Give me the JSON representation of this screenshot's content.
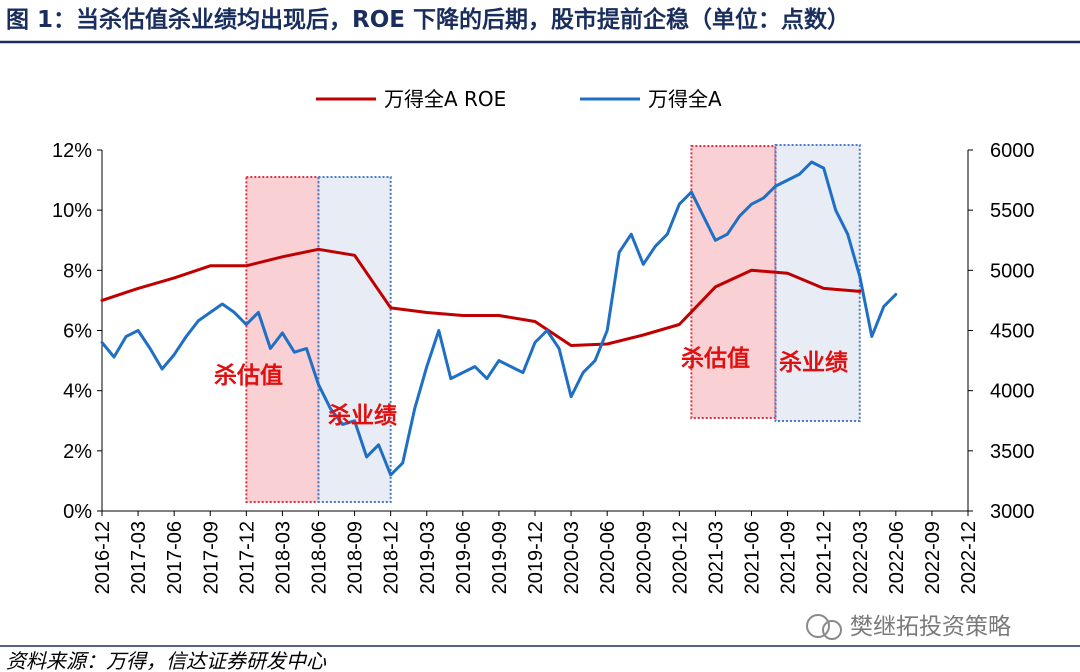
{
  "title": "图 1：当杀估值杀业绩均出现后，ROE 下降的后期，股市提前企稳（单位：点数）",
  "source": "资料来源：万得，信达证券研发中心",
  "watermark": "樊继拓投资策略",
  "colors": {
    "title": "#1a2e5e",
    "roe": "#c00000",
    "index": "#1f6fc4",
    "pink": "#f8c8cc",
    "blue": "#dfe6f2",
    "annot": "#e01010"
  },
  "chart_data": {
    "type": "line",
    "x_ticks": [
      "2016-12",
      "2017-03",
      "2017-06",
      "2017-09",
      "2017-12",
      "2018-03",
      "2018-06",
      "2018-09",
      "2018-12",
      "2019-03",
      "2019-06",
      "2019-09",
      "2019-12",
      "2020-03",
      "2020-06",
      "2020-09",
      "2020-12",
      "2021-03",
      "2021-06",
      "2021-09",
      "2021-12",
      "2022-03",
      "2022-06",
      "2022-09",
      "2022-12"
    ],
    "y_left": {
      "ticks": [
        "0%",
        "2%",
        "4%",
        "6%",
        "8%",
        "10%",
        "12%"
      ],
      "ylim": [
        0,
        12
      ]
    },
    "y_right": {
      "ticks": [
        "3000",
        "3500",
        "4000",
        "4500",
        "5000",
        "5500",
        "6000"
      ],
      "ylim": [
        3000,
        6000
      ]
    },
    "legend": {
      "placement": "top",
      "entries": [
        "万得全A ROE",
        "万得全A"
      ]
    },
    "series": [
      {
        "name": "万得全A ROE",
        "axis": "left",
        "points": [
          [
            "2016-12",
            7.0
          ],
          [
            "2017-03",
            7.4
          ],
          [
            "2017-06",
            7.75
          ],
          [
            "2017-09",
            8.15
          ],
          [
            "2017-12",
            8.15
          ],
          [
            "2018-03",
            8.45
          ],
          [
            "2018-06",
            8.7
          ],
          [
            "2018-09",
            8.5
          ],
          [
            "2018-12",
            6.75
          ],
          [
            "2019-03",
            6.6
          ],
          [
            "2019-06",
            6.5
          ],
          [
            "2019-09",
            6.5
          ],
          [
            "2019-12",
            6.3
          ],
          [
            "2020-03",
            5.5
          ],
          [
            "2020-06",
            5.55
          ],
          [
            "2020-09",
            5.85
          ],
          [
            "2020-12",
            6.2
          ],
          [
            "2021-03",
            7.45
          ],
          [
            "2021-06",
            8.0
          ],
          [
            "2021-09",
            7.9
          ],
          [
            "2021-12",
            7.4
          ],
          [
            "2022-03",
            7.3
          ]
        ]
      },
      {
        "name": "万得全A",
        "axis": "right",
        "points": [
          [
            "2016-12",
            4400
          ],
          [
            "2017-01",
            4280
          ],
          [
            "2017-02",
            4450
          ],
          [
            "2017-03",
            4500
          ],
          [
            "2017-04",
            4350
          ],
          [
            "2017-05",
            4180
          ],
          [
            "2017-06",
            4300
          ],
          [
            "2017-07",
            4450
          ],
          [
            "2017-08",
            4580
          ],
          [
            "2017-09",
            4650
          ],
          [
            "2017-10",
            4720
          ],
          [
            "2017-11",
            4650
          ],
          [
            "2017-12",
            4550
          ],
          [
            "2018-01",
            4650
          ],
          [
            "2018-02",
            4350
          ],
          [
            "2018-03",
            4480
          ],
          [
            "2018-04",
            4320
          ],
          [
            "2018-05",
            4350
          ],
          [
            "2018-06",
            4050
          ],
          [
            "2018-07",
            3850
          ],
          [
            "2018-08",
            3720
          ],
          [
            "2018-09",
            3750
          ],
          [
            "2018-10",
            3450
          ],
          [
            "2018-11",
            3550
          ],
          [
            "2018-12",
            3300
          ],
          [
            "2019-01",
            3400
          ],
          [
            "2019-02",
            3850
          ],
          [
            "2019-03",
            4200
          ],
          [
            "2019-04",
            4500
          ],
          [
            "2019-05",
            4100
          ],
          [
            "2019-06",
            4150
          ],
          [
            "2019-07",
            4200
          ],
          [
            "2019-08",
            4100
          ],
          [
            "2019-09",
            4250
          ],
          [
            "2019-10",
            4200
          ],
          [
            "2019-11",
            4150
          ],
          [
            "2019-12",
            4400
          ],
          [
            "2020-01",
            4500
          ],
          [
            "2020-02",
            4350
          ],
          [
            "2020-03",
            3950
          ],
          [
            "2020-04",
            4150
          ],
          [
            "2020-05",
            4250
          ],
          [
            "2020-06",
            4500
          ],
          [
            "2020-07",
            5150
          ],
          [
            "2020-08",
            5300
          ],
          [
            "2020-09",
            5050
          ],
          [
            "2020-10",
            5200
          ],
          [
            "2020-11",
            5300
          ],
          [
            "2020-12",
            5550
          ],
          [
            "2021-01",
            5650
          ],
          [
            "2021-02",
            5450
          ],
          [
            "2021-03",
            5250
          ],
          [
            "2021-04",
            5300
          ],
          [
            "2021-05",
            5450
          ],
          [
            "2021-06",
            5550
          ],
          [
            "2021-07",
            5600
          ],
          [
            "2021-08",
            5700
          ],
          [
            "2021-09",
            5750
          ],
          [
            "2021-10",
            5800
          ],
          [
            "2021-11",
            5900
          ],
          [
            "2021-12",
            5850
          ],
          [
            "2022-01",
            5500
          ],
          [
            "2022-02",
            5300
          ],
          [
            "2022-03",
            4950
          ],
          [
            "2022-04",
            4450
          ],
          [
            "2022-05",
            4700
          ],
          [
            "2022-06",
            4800
          ]
        ]
      }
    ],
    "shaded_regions": [
      {
        "label": "杀估值",
        "from": "2017-12",
        "to": "2018-06",
        "color": "pink"
      },
      {
        "label": "杀业绩",
        "from": "2018-06",
        "to": "2018-12",
        "color": "blue"
      },
      {
        "label": "杀估值",
        "from": "2021-01",
        "to": "2021-08",
        "color": "pink"
      },
      {
        "label": "杀业绩",
        "from": "2021-08",
        "to": "2022-03",
        "color": "blue"
      }
    ]
  }
}
